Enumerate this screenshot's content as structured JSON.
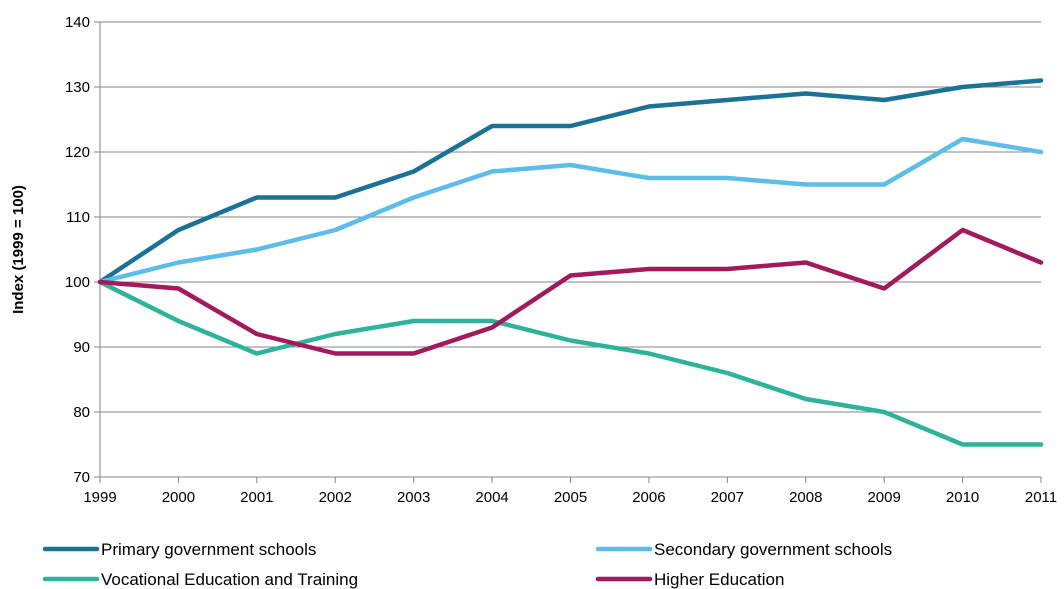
{
  "chart_data": {
    "type": "line",
    "title": "",
    "xlabel": "",
    "ylabel": "Index (1999 = 100)",
    "x": [
      "1999",
      "2000",
      "2001",
      "2002",
      "2003",
      "2004",
      "2005",
      "2006",
      "2007",
      "2008",
      "2009",
      "2010",
      "2011"
    ],
    "ylim": [
      70,
      140
    ],
    "yticks": [
      "70",
      "80",
      "90",
      "100",
      "110",
      "120",
      "130",
      "140"
    ],
    "grid": "horizontal",
    "legend_position": "bottom",
    "series": [
      {
        "name": "Primary government schools",
        "color": "#1a7396",
        "values": [
          100,
          108,
          113,
          113,
          117,
          124,
          124,
          127,
          128,
          129,
          128,
          130,
          131
        ]
      },
      {
        "name": "Secondary government schools",
        "color": "#5bbde8",
        "values": [
          100,
          103,
          105,
          108,
          113,
          117,
          118,
          116,
          116,
          115,
          115,
          122,
          120
        ]
      },
      {
        "name": "Vocational Education and Training",
        "color": "#2db39a",
        "values": [
          100,
          94,
          89,
          92,
          94,
          94,
          91,
          89,
          86,
          82,
          80,
          75,
          75
        ]
      },
      {
        "name": "Higher Education",
        "color": "#a3195b",
        "values": [
          100,
          99,
          92,
          89,
          89,
          93,
          101,
          102,
          102,
          103,
          99,
          108,
          103
        ]
      }
    ]
  }
}
